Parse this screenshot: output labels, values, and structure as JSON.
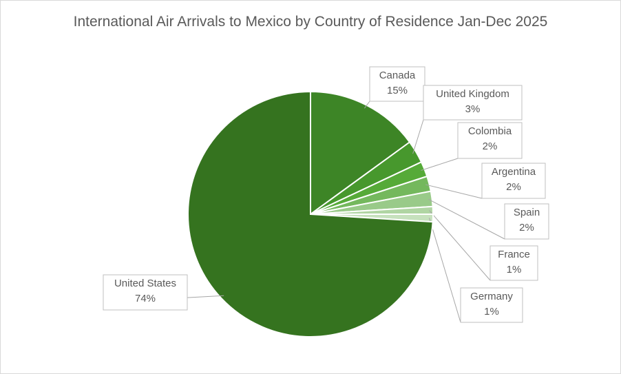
{
  "chart_data": {
    "type": "pie",
    "title": "International Air Arrivals to Mexico by Country of Residence Jan-Dec 2025",
    "categories": [
      "Canada",
      "United Kingdom",
      "Colombia",
      "Argentina",
      "Spain",
      "France",
      "Germany",
      "United States"
    ],
    "values": [
      15,
      3,
      2,
      2,
      2,
      1,
      1,
      74
    ],
    "value_labels": [
      "15%",
      "3%",
      "2%",
      "2%",
      "2%",
      "1%",
      "1%",
      "74%"
    ],
    "colors": [
      "#3d8526",
      "#47982d",
      "#56aa38",
      "#74b85d",
      "#99ca89",
      "#b0d5a3",
      "#c6e1bd",
      "#35731f"
    ]
  }
}
